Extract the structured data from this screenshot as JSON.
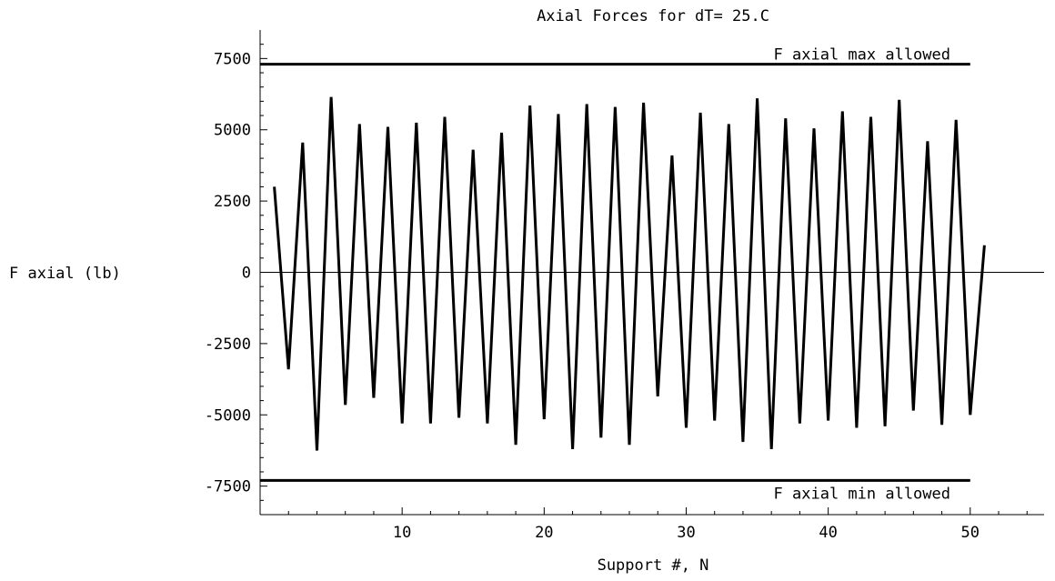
{
  "chart_data": {
    "type": "line",
    "title": "Axial Forces for dT= 25.C",
    "xlabel": "Support #, N",
    "ylabel": "F axial (lb)",
    "xlim": [
      0,
      55.2
    ],
    "ylim": [
      -8500,
      8500
    ],
    "x_ticks": [
      10,
      20,
      30,
      40,
      50
    ],
    "y_ticks": [
      7500,
      5000,
      2500,
      0,
      -2500,
      -5000,
      -7500
    ],
    "grid": false,
    "series": [
      {
        "x": [
          1,
          2,
          3,
          4,
          5,
          6,
          7,
          8,
          9,
          10,
          11,
          12,
          13,
          14,
          15,
          16,
          17,
          18,
          19,
          20,
          21,
          22,
          23,
          24,
          25,
          26,
          27,
          28,
          29,
          30,
          31,
          32,
          33,
          34,
          35,
          36,
          37,
          38,
          39,
          40,
          41,
          42,
          43,
          44,
          45,
          46,
          47,
          48,
          49,
          50,
          51
        ],
        "values": [
          3000,
          -3400,
          4550,
          -6250,
          6150,
          -4650,
          5200,
          -4400,
          5100,
          -5300,
          5250,
          -5300,
          5450,
          -5100,
          4300,
          -5300,
          4900,
          -6050,
          5850,
          -5150,
          5550,
          -6200,
          5900,
          -5800,
          5800,
          -6050,
          5950,
          -4350,
          4100,
          -5450,
          5600,
          -5200,
          5200,
          -5950,
          6100,
          -6200,
          5400,
          -5300,
          5050,
          -5200,
          5650,
          -5450,
          5450,
          -5400,
          6050,
          -4850,
          4600,
          -5350,
          5350,
          -5000,
          950
        ]
      }
    ],
    "reference_lines": [
      {
        "label": "F axial max allowed",
        "y": 7300,
        "x_range": [
          0,
          50
        ]
      },
      {
        "label": "F axial min allowed",
        "y": -7300,
        "x_range": [
          0,
          50
        ]
      }
    ]
  }
}
